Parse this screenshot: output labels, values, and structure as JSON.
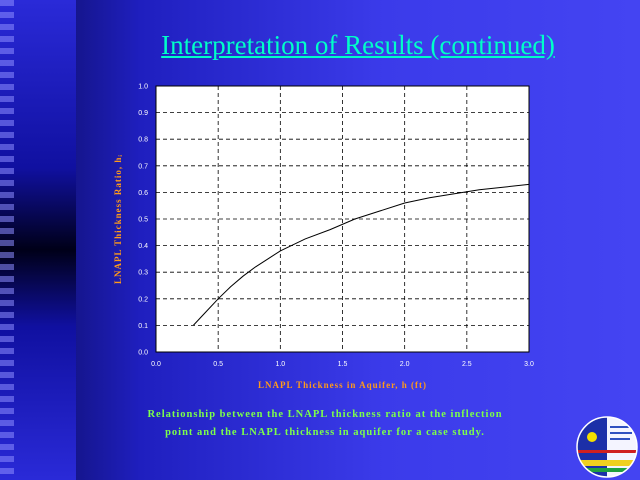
{
  "slide": {
    "title": "Interpretation of Results (continued)",
    "caption_line1": "Relationship between the LNAPL thickness ratio at the inflection",
    "caption_line2": "point and the LNAPL thickness in aquifer for a case study."
  },
  "chart_data": {
    "type": "line",
    "xlabel": "LNAPL Thickness in Aquifer, h (ft)",
    "ylabel": "LNAPL Thickness Ratio, hᵢ",
    "xlim": [
      0.0,
      3.0
    ],
    "ylim": [
      0.0,
      1.0
    ],
    "xticks": [
      "0.0",
      "0.5",
      "1.0",
      "1.5",
      "2.0",
      "2.5",
      "3.0"
    ],
    "yticks": [
      "0.0",
      "0.1",
      "0.2",
      "0.3",
      "0.4",
      "0.5",
      "0.6",
      "0.7",
      "0.8",
      "0.9",
      "1.0"
    ],
    "grid": true,
    "series": [
      {
        "x": [
          0.3,
          0.4,
          0.5,
          0.6,
          0.7,
          0.8,
          0.9,
          1.0,
          1.2,
          1.4,
          1.6,
          1.8,
          2.0,
          2.2,
          2.4,
          2.6,
          2.8,
          3.0
        ],
        "y": [
          0.1,
          0.15,
          0.2,
          0.245,
          0.285,
          0.32,
          0.35,
          0.38,
          0.425,
          0.46,
          0.5,
          0.53,
          0.56,
          0.58,
          0.595,
          0.61,
          0.62,
          0.63
        ]
      }
    ]
  },
  "colors": {
    "title": "#00ffc8",
    "axis_label": "#ff9a1a",
    "caption": "#7cff4a",
    "plot_background": "#ffffff"
  }
}
